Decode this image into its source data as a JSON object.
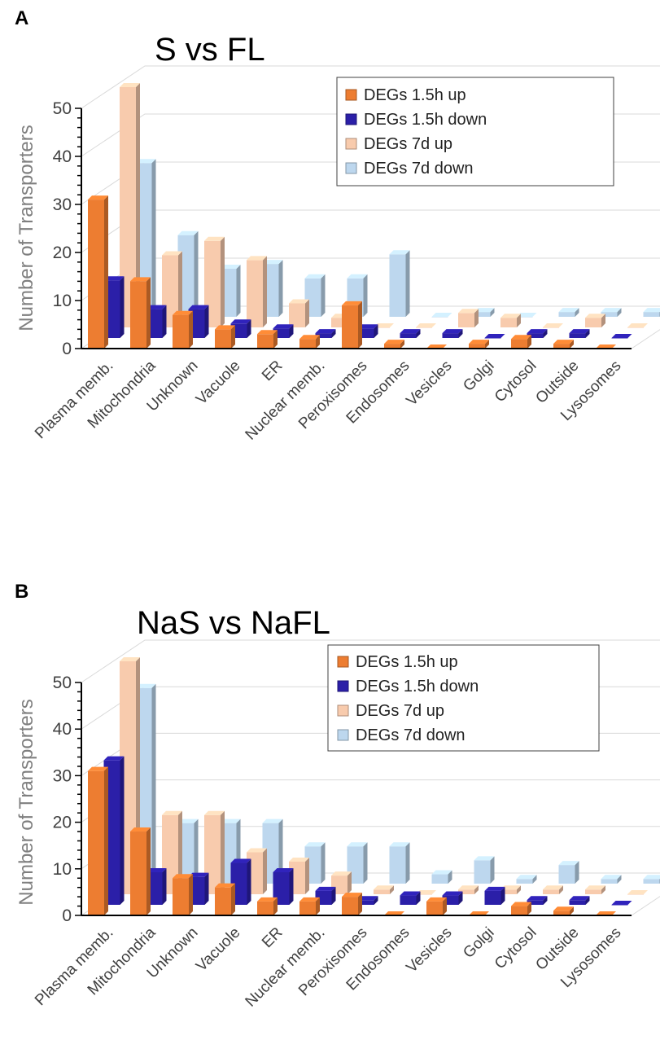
{
  "chart_data": [
    {
      "panel": "A",
      "type": "bar",
      "title": "S vs FL",
      "ylabel": "Number of Transporters",
      "xlabel": "",
      "ylim": [
        0,
        50
      ],
      "yticks": [
        "0",
        "10",
        "20",
        "30",
        "40",
        "50"
      ],
      "categories": [
        "Plasma memb.",
        "Mitochondria",
        "Unknown",
        "Vacuole",
        "ER",
        "Nuclear memb.",
        "Peroxisomes",
        "Endosomes",
        "Vesicles",
        "Golgi",
        "Cytosol",
        "Outside",
        "Lysosomes"
      ],
      "series": [
        {
          "name": "DEGs 1.5h up",
          "color": "#ED7D31",
          "values": [
            31,
            14,
            7,
            4,
            3,
            2,
            9,
            1,
            0,
            1,
            2,
            1,
            0
          ]
        },
        {
          "name": "DEGs 1.5h down",
          "color": "#2B1FA8",
          "values": [
            12,
            6,
            6,
            3,
            2,
            1,
            2,
            1,
            1,
            0,
            1,
            1,
            0
          ]
        },
        {
          "name": "DEGs 7d up",
          "color": "#F8CBAD",
          "values": [
            50,
            15,
            18,
            14,
            5,
            2,
            0,
            0,
            3,
            2,
            0,
            2,
            0
          ]
        },
        {
          "name": "DEGs 7d down",
          "color": "#BDD7EE",
          "values": [
            32,
            17,
            10,
            11,
            8,
            8,
            13,
            0,
            1,
            0,
            1,
            1,
            1
          ]
        }
      ],
      "legend_position": "top-right"
    },
    {
      "panel": "B",
      "type": "bar",
      "title": "NaS vs NaFL",
      "ylabel": "Number of Transporters",
      "xlabel": "",
      "ylim": [
        0,
        50
      ],
      "yticks": [
        "0",
        "10",
        "20",
        "30",
        "40",
        "50"
      ],
      "categories": [
        "Plasma memb.",
        "Mitochondria",
        "Unknown",
        "Vacuole",
        "ER",
        "Nuclear memb.",
        "Peroxisomes",
        "Endosomes",
        "Vesicles",
        "Golgi",
        "Cytosol",
        "Outside",
        "Lysosomes"
      ],
      "series": [
        {
          "name": "DEGs 1.5h up",
          "color": "#ED7D31",
          "values": [
            31,
            18,
            8,
            6,
            3,
            3,
            4,
            0,
            3,
            0,
            2,
            1,
            0
          ]
        },
        {
          "name": "DEGs 1.5h down",
          "color": "#2B1FA8",
          "values": [
            31,
            7,
            6,
            9,
            7,
            3,
            1,
            2,
            2,
            3,
            1,
            1,
            0
          ]
        },
        {
          "name": "DEGs 7d up",
          "color": "#F8CBAD",
          "values": [
            50,
            17,
            17,
            9,
            7,
            4,
            1,
            0,
            1,
            1,
            1,
            1,
            0
          ]
        },
        {
          "name": "DEGs 7d down",
          "color": "#BDD7EE",
          "values": [
            42,
            13,
            13,
            13,
            8,
            8,
            8,
            2,
            5,
            1,
            4,
            1,
            1
          ]
        }
      ],
      "legend_position": "top-right"
    }
  ]
}
